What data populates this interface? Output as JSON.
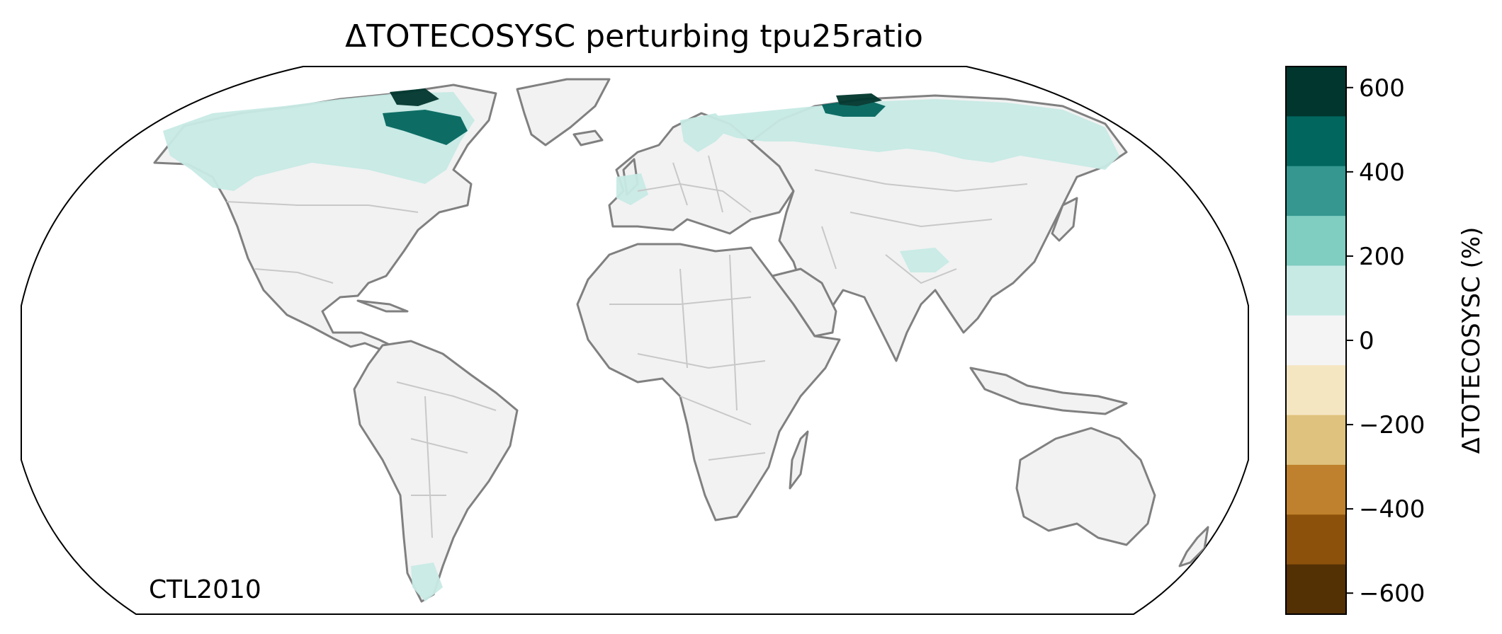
{
  "title": "ΔTOTECOSYSC perturbing tpu25ratio",
  "annotation": "CTL2010",
  "colorbar": {
    "label": "ΔTOTECOSYSC (%)",
    "vmin": -650,
    "vmax": 650,
    "ticks": [
      600,
      400,
      200,
      0,
      -200,
      -400,
      -600
    ],
    "tick_labels": [
      "600",
      "400",
      "200",
      "0",
      "−200",
      "−400",
      "−600"
    ],
    "bin_colors": [
      "#00362d",
      "#01665e",
      "#35978f",
      "#80cdc1",
      "#c7eae5",
      "#f4f4f4",
      "#f5e6c2",
      "#dfc27d",
      "#bf812d",
      "#8c510a",
      "#543005"
    ]
  },
  "map": {
    "projection": "Robinson",
    "land_color": "#f2f2f2",
    "coast_color": "#808080",
    "border_color": "#c8c8c8",
    "positive_change_color": "#c7eae5",
    "strong_change_color": "#01665e",
    "max_change_color": "#00362d"
  }
}
